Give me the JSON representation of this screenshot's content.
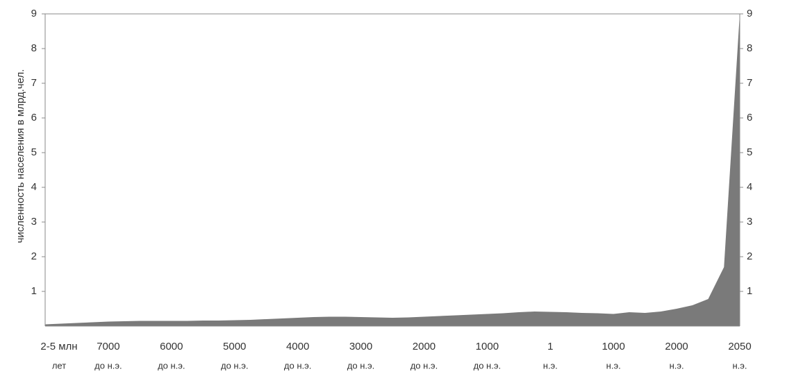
{
  "chart_data": {
    "type": "area",
    "y_label": "численность населения в млрд.чел.",
    "categories": [
      "2-5 млн",
      null,
      null,
      null,
      "7000",
      null,
      null,
      null,
      "6000",
      null,
      null,
      null,
      "5000",
      null,
      null,
      null,
      "4000",
      null,
      null,
      null,
      "3000",
      null,
      null,
      null,
      "2000",
      null,
      null,
      null,
      "1000",
      null,
      null,
      null,
      "1",
      null,
      null,
      null,
      "1000",
      null,
      null,
      null,
      "2000",
      null,
      null,
      null,
      "2050"
    ],
    "category_notes": [
      "лет",
      null,
      null,
      null,
      "до н.э.",
      null,
      null,
      null,
      "до н.э.",
      null,
      null,
      null,
      "до н.э.",
      null,
      null,
      null,
      "до н.э.",
      null,
      null,
      null,
      "до н.э.",
      null,
      null,
      null,
      "до н.э.",
      null,
      null,
      null,
      "до н.э.",
      null,
      null,
      null,
      "н.э.",
      null,
      null,
      null,
      "н.э.",
      null,
      null,
      null,
      "н.э.",
      null,
      null,
      null,
      "н.э."
    ],
    "values": [
      0.05,
      0.07,
      0.09,
      0.11,
      0.13,
      0.14,
      0.15,
      0.15,
      0.15,
      0.15,
      0.16,
      0.16,
      0.17,
      0.18,
      0.2,
      0.22,
      0.24,
      0.26,
      0.27,
      0.27,
      0.26,
      0.25,
      0.24,
      0.25,
      0.27,
      0.29,
      0.31,
      0.33,
      0.35,
      0.37,
      0.4,
      0.42,
      0.41,
      0.4,
      0.38,
      0.37,
      0.35,
      0.4,
      0.38,
      0.42,
      0.5,
      0.6,
      0.78,
      1.7,
      9
    ],
    "color": "#7a7a7a",
    "ylim": [
      0,
      9
    ],
    "yticks": [
      1,
      2,
      3,
      4,
      5,
      6,
      7,
      8,
      9
    ],
    "y2lim": [
      0,
      9
    ],
    "y2ticks": [
      1,
      2,
      3,
      4,
      5,
      6,
      7,
      8,
      9
    ]
  }
}
